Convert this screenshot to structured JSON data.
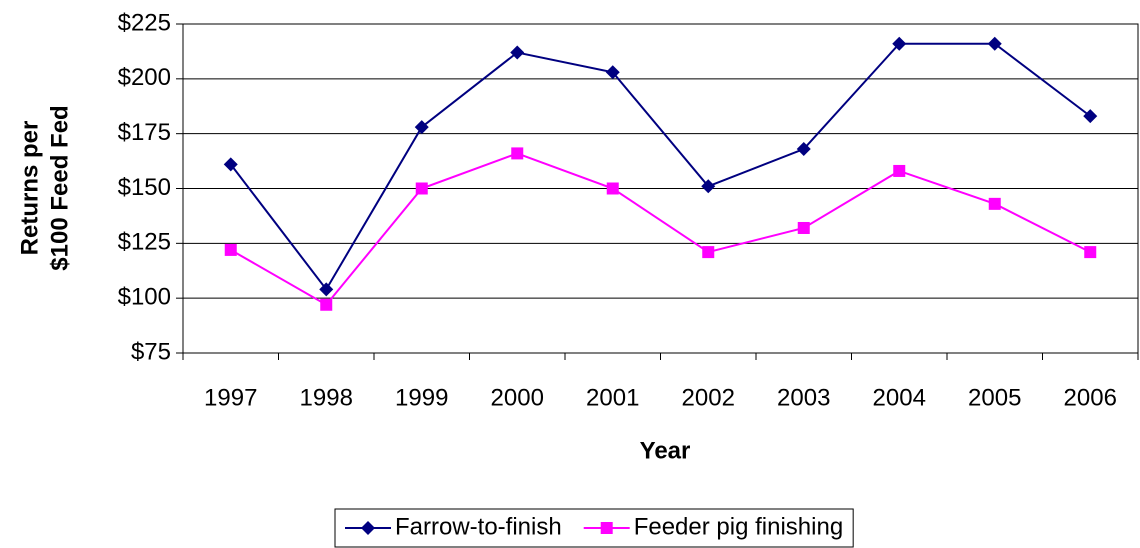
{
  "chart_data": {
    "type": "line",
    "x_label": "Year",
    "y_label": [
      "Returns per",
      "$100 Feed Fed"
    ],
    "categories": [
      "1997",
      "1998",
      "1999",
      "2000",
      "2001",
      "2002",
      "2003",
      "2004",
      "2005",
      "2006"
    ],
    "series": [
      {
        "name": "Farrow-to-finish",
        "color": "#000080",
        "marker": "diamond",
        "values": [
          161,
          104,
          178,
          212,
          203,
          151,
          168,
          216,
          216,
          183
        ]
      },
      {
        "name": "Feeder pig finishing",
        "color": "#ff00ff",
        "marker": "square",
        "values": [
          122,
          97,
          150,
          166,
          150,
          121,
          132,
          158,
          143,
          121
        ]
      }
    ],
    "ylim": [
      75,
      225
    ],
    "yticks": [
      {
        "value": 75,
        "label": "$75"
      },
      {
        "value": 100,
        "label": "$100"
      },
      {
        "value": 125,
        "label": "$125"
      },
      {
        "value": 150,
        "label": "$150"
      },
      {
        "value": 175,
        "label": "$175"
      },
      {
        "value": 200,
        "label": "$200"
      },
      {
        "value": 225,
        "label": "$225"
      }
    ],
    "grid": true,
    "legend": "bottom"
  }
}
